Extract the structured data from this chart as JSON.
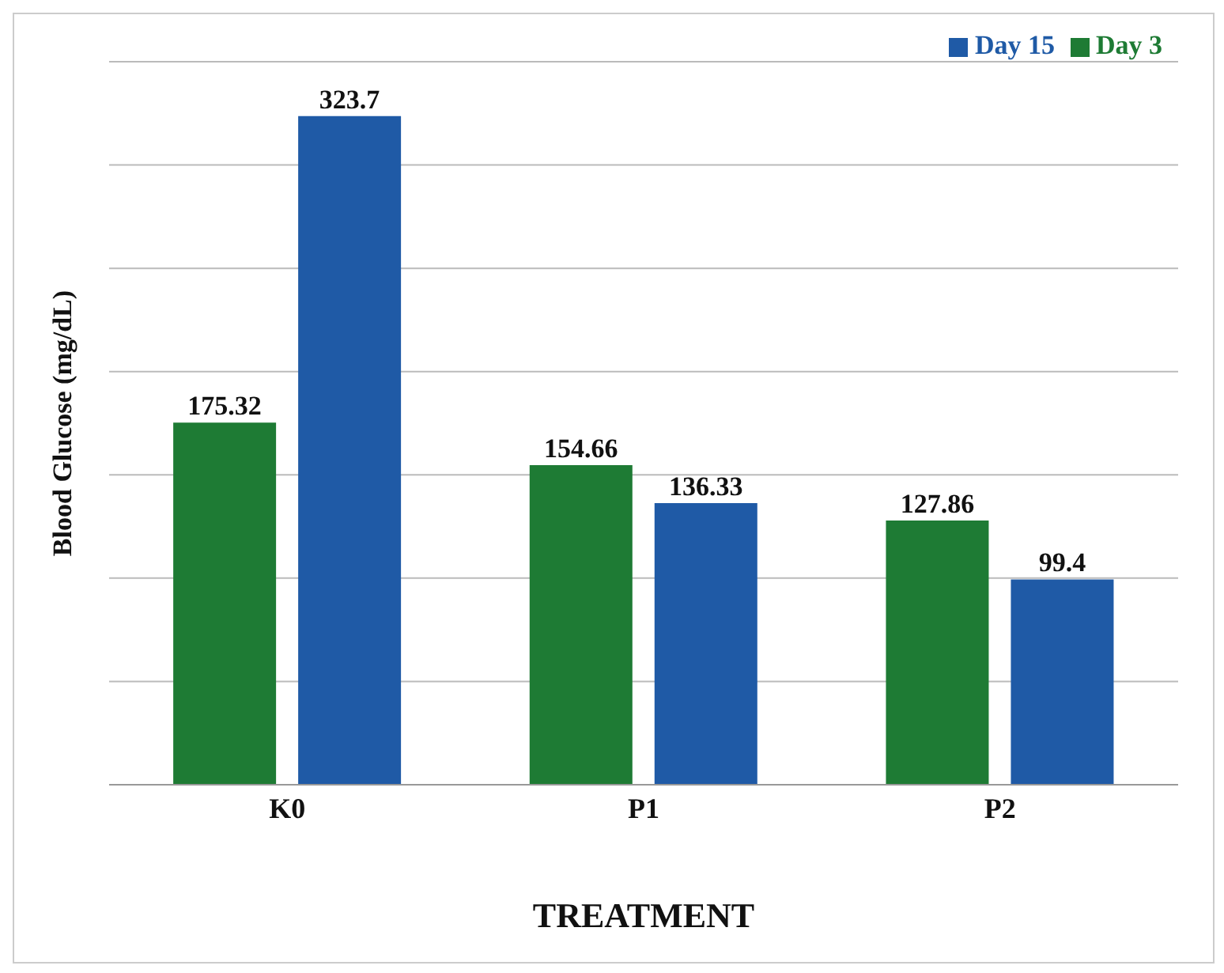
{
  "chart_data": {
    "type": "bar",
    "xlabel": "TREATMENT",
    "ylabel": "Blood Glucose (mg/dL)",
    "categories": [
      "K0",
      "P1",
      "P2"
    ],
    "series": [
      {
        "name": "Day 3",
        "color": "#1e7b34",
        "values": [
          175.32,
          154.66,
          127.86
        ]
      },
      {
        "name": "Day 15",
        "color": "#1f5aa6",
        "values": [
          323.7,
          136.33,
          99.4
        ]
      }
    ],
    "ylim": [
      0,
      350
    ],
    "yticks": [
      {
        "value": 0,
        "label": null
      },
      {
        "value": 50,
        "label": null
      },
      {
        "value": 100,
        "label": null
      },
      {
        "value": 150,
        "label": null
      },
      {
        "value": 200,
        "label": null
      },
      {
        "value": 250,
        "label": null
      },
      {
        "value": 300,
        "label": null
      },
      {
        "value": 350,
        "label": null
      }
    ],
    "tick_labels": "x",
    "grid": "y",
    "legend": "top right",
    "data_labels": true
  }
}
